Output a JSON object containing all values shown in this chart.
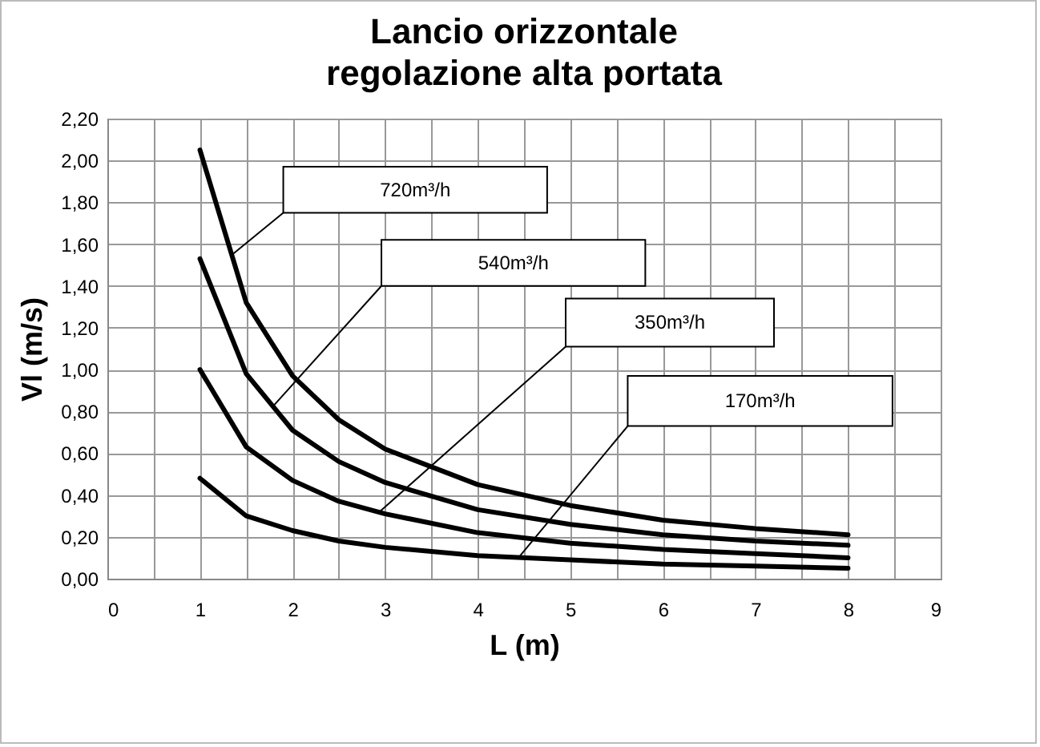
{
  "chart_data": {
    "type": "line",
    "title": "Lancio orizzontale\nregolazione alta portata",
    "xlabel": "L (m)",
    "ylabel": "Vl (m/s)",
    "x": [
      1,
      1.5,
      2,
      2.5,
      3,
      4,
      5,
      6,
      7,
      8
    ],
    "series": [
      {
        "color": "#000000",
        "values": [
          2.05,
          1.32,
          0.97,
          0.76,
          0.62,
          0.45,
          0.35,
          0.28,
          0.24,
          0.21
        ]
      },
      {
        "color": "#000000",
        "values": [
          1.53,
          0.98,
          0.71,
          0.56,
          0.46,
          0.33,
          0.26,
          0.21,
          0.18,
          0.16
        ]
      },
      {
        "color": "#000000",
        "values": [
          1.0,
          0.63,
          0.47,
          0.37,
          0.31,
          0.22,
          0.17,
          0.14,
          0.12,
          0.1
        ]
      },
      {
        "color": "#000000",
        "values": [
          0.48,
          0.3,
          0.23,
          0.18,
          0.15,
          0.11,
          0.09,
          0.07,
          0.06,
          0.05
        ]
      }
    ],
    "annotations": [
      "720m³/h",
      "540m³/h",
      "350m³/h",
      "170m³/h"
    ],
    "xlim": [
      0,
      9
    ],
    "xticks": [
      0,
      {
        "value": 0.5,
        "label": null
      },
      1,
      {
        "value": 1.5,
        "label": null
      },
      2,
      {
        "value": 2.5,
        "label": null
      },
      3,
      {
        "value": 3.5,
        "label": null
      },
      4,
      {
        "value": 4.5,
        "label": null
      },
      5,
      {
        "value": 5.5,
        "label": null
      },
      6,
      {
        "value": 6.5,
        "label": null
      },
      7,
      {
        "value": 7.5,
        "label": null
      },
      8,
      {
        "value": 8.5,
        "label": null
      },
      9
    ],
    "ylim": [
      0,
      2.2
    ],
    "yticks": [
      {
        "value": 0,
        "label": "0,00"
      },
      {
        "value": 0.2,
        "label": "0,20"
      },
      {
        "value": 0.4,
        "label": "0,40"
      },
      {
        "value": 0.6,
        "label": "0,60"
      },
      {
        "value": 0.8,
        "label": "0,80"
      },
      {
        "value": 1,
        "label": "1,00"
      },
      {
        "value": 1.2,
        "label": "1,20"
      },
      {
        "value": 1.4,
        "label": "1,40"
      },
      {
        "value": 1.6,
        "label": "1,60"
      },
      {
        "value": 1.8,
        "label": "1,80"
      },
      {
        "value": 2,
        "label": "2,00"
      },
      {
        "value": 2.2,
        "label": "2,20"
      }
    ],
    "grid": true,
    "legend": false,
    "line_style": "solid",
    "marker": "none"
  }
}
